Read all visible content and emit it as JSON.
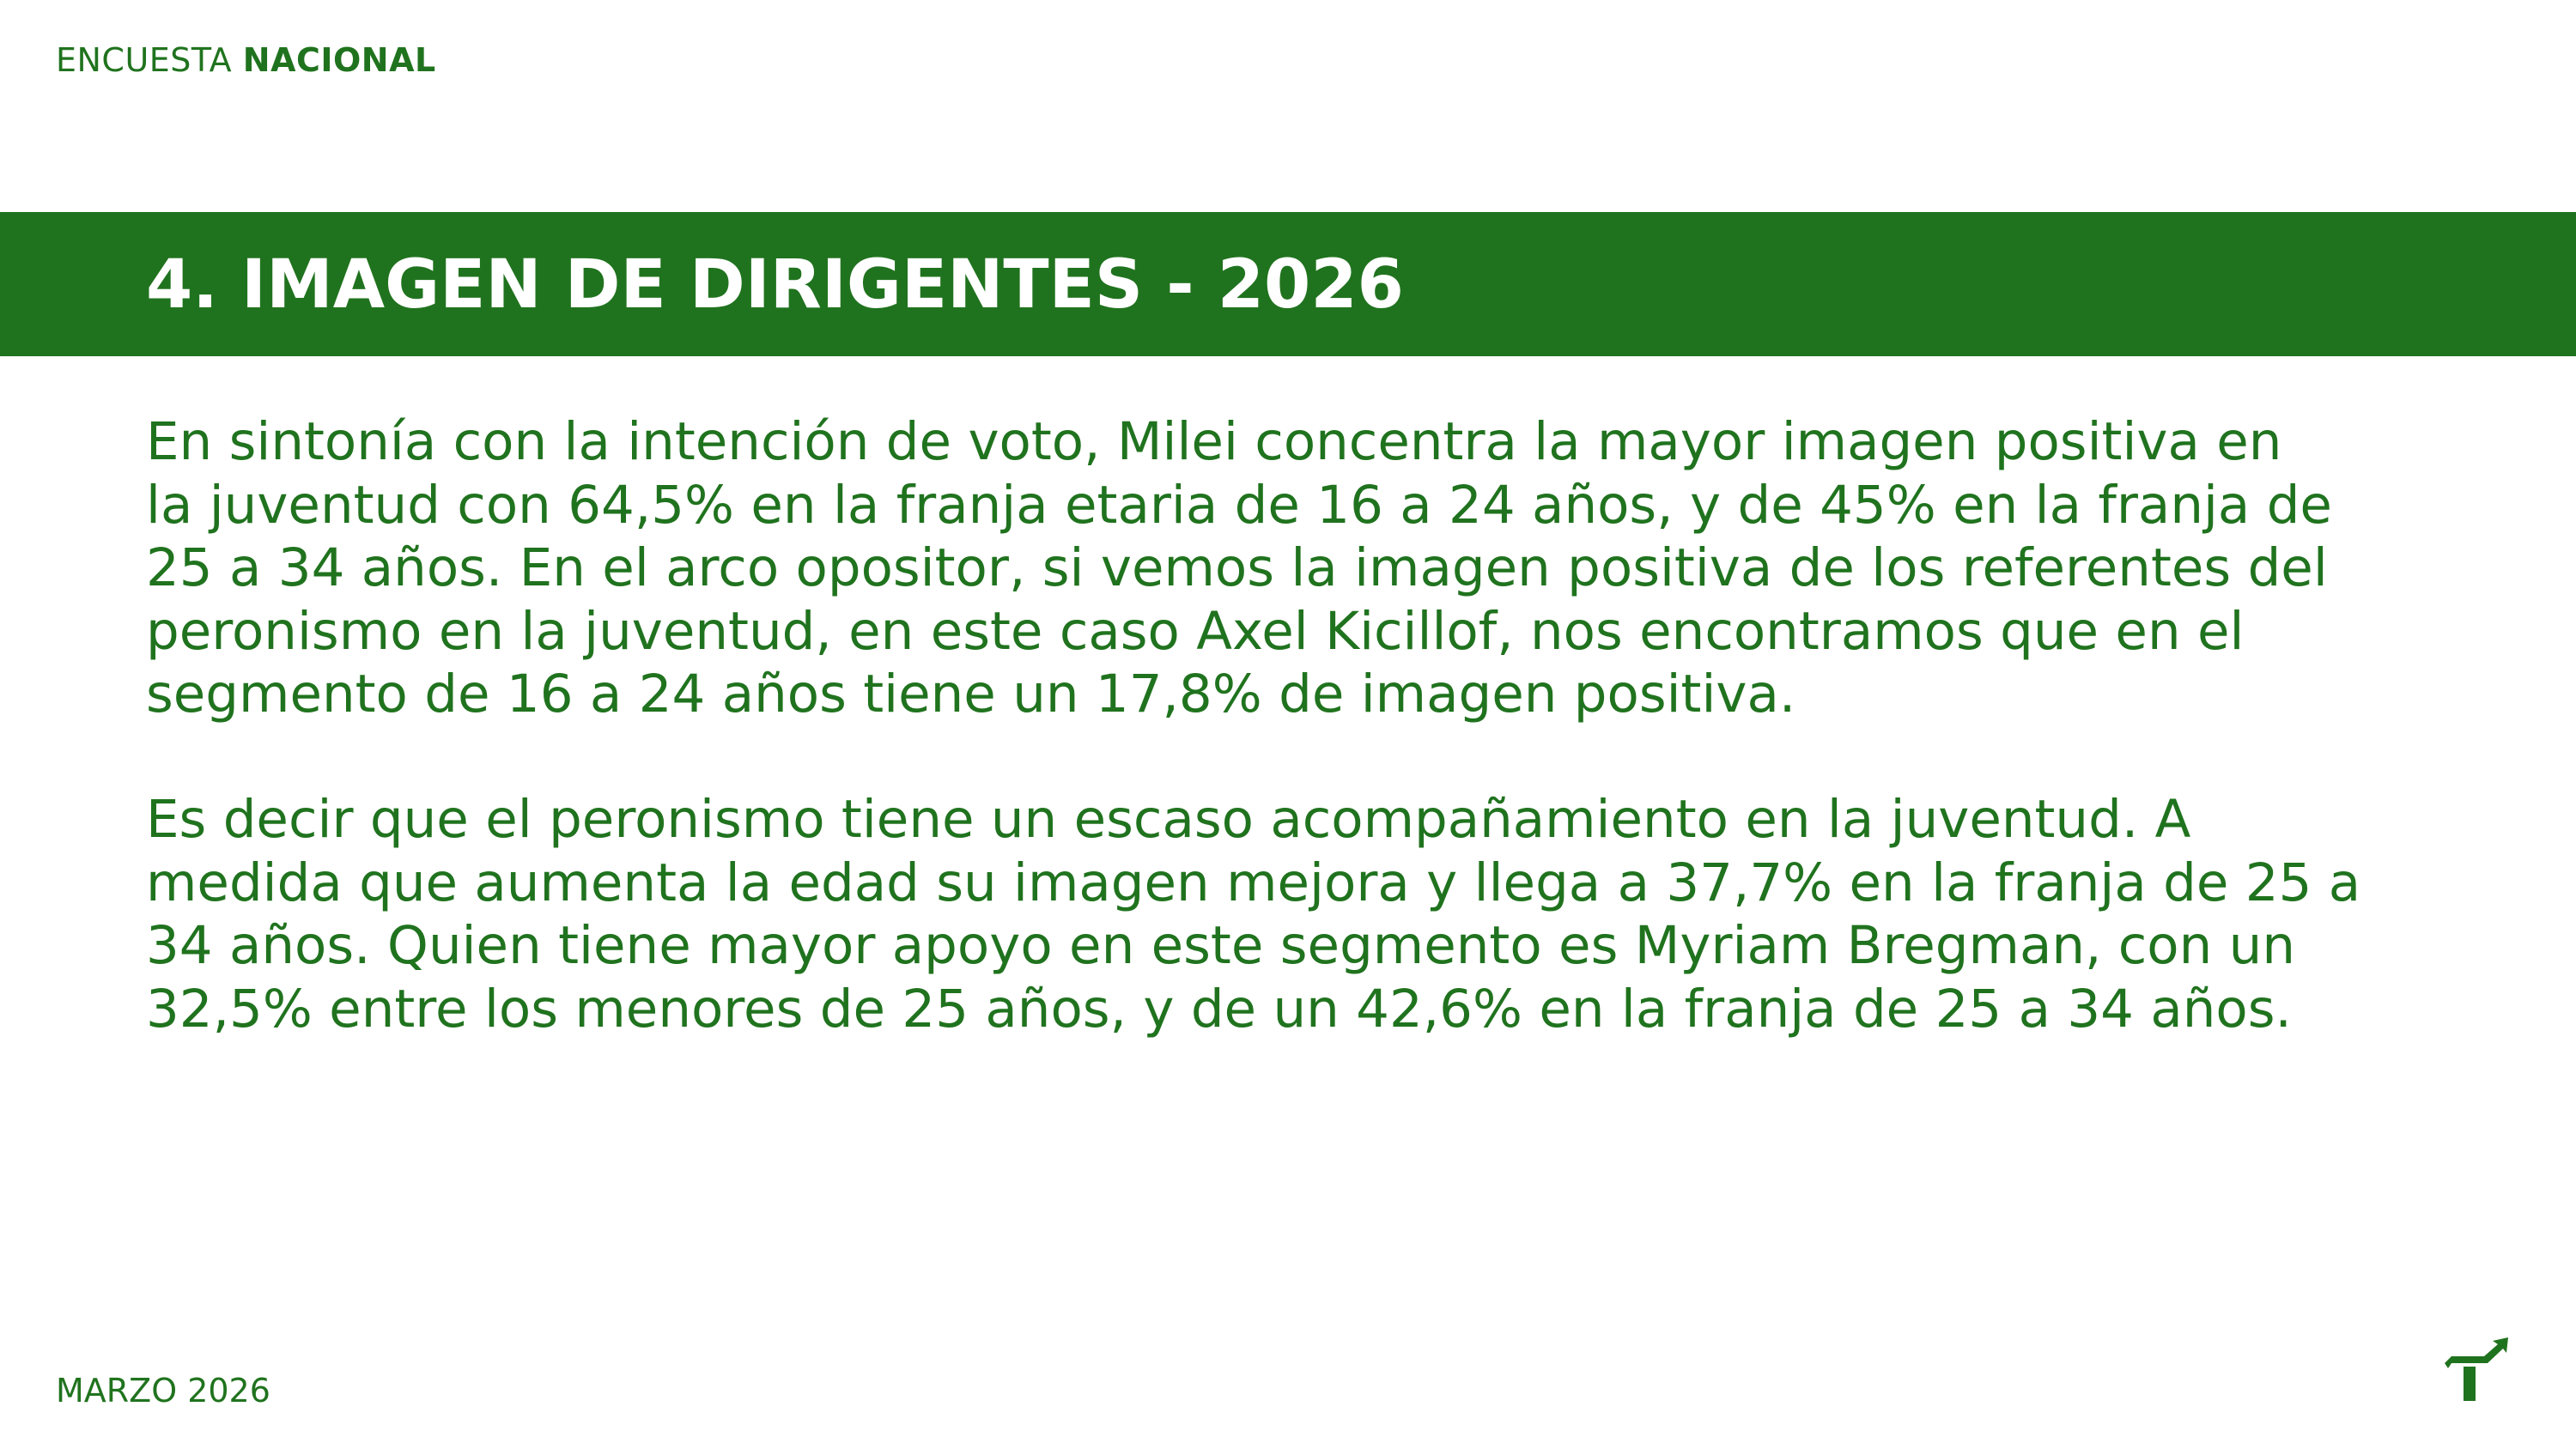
{
  "header": {
    "label_regular": "ENCUESTA",
    "label_bold": "NACIONAL"
  },
  "banner": {
    "title": "4. IMAGEN DE DIRIGENTES - 2026"
  },
  "body": {
    "paragraph1": [
      "En sintonía con la intención de voto, Milei concentra la mayor imagen positiva en",
      "la juventud con 64,5% en la franja etaria de 16 a 24 años, y de 45% en la franja de",
      "25 a 34 años. En el arco opositor, si vemos la imagen positiva de los referentes del",
      "peronismo en la juventud, en este caso Axel Kicillof, nos encontramos que en el",
      "segmento de 16 a 24 años tiene un 17,8% de imagen positiva."
    ],
    "paragraph2": [
      "Es decir que el peronismo tiene un escaso acompañamiento en la juventud. A",
      "medida que aumenta la edad su imagen mejora y llega a 37,7% en la franja de 25 a",
      "34 años. Quien tiene mayor apoyo en este segmento es Myriam Bregman, con un",
      "32,5% entre los menores de 25 años, y de un 42,6% en la franja de 25 a 34 años."
    ]
  },
  "footer": {
    "date": "MARZO 2026"
  },
  "logo": {
    "icon": "t-arrow-up-logo"
  },
  "colors": {
    "brand_green": "#20731e",
    "background": "#ffffff"
  }
}
